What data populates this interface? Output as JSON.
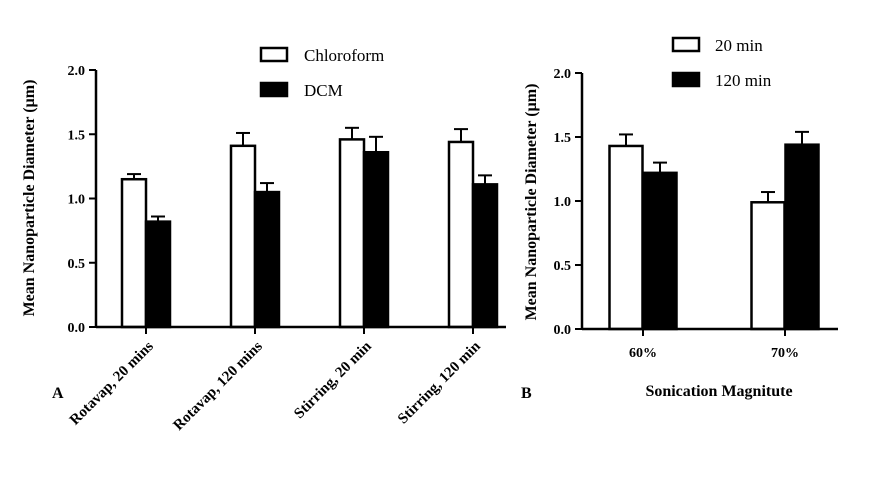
{
  "chart_data": [
    {
      "panel_label": "A",
      "type": "bar",
      "ylabel": "Mean Nanoparticle Diameter (µm)",
      "xlabel": "",
      "ylim": [
        0,
        2
      ],
      "yticks": [
        "0.0",
        "0.5",
        "1.0",
        "1.5",
        "2.0"
      ],
      "categories": [
        "Rotavap, 20 mins",
        "Rotavap, 120 mins",
        "Stirring, 20 min",
        "Stirring, 120 min"
      ],
      "series": [
        {
          "name": "Chloroform",
          "values": [
            1.15,
            1.41,
            1.46,
            1.44
          ],
          "errors": [
            0.04,
            0.1,
            0.09,
            0.1
          ],
          "color": "#ffffff"
        },
        {
          "name": "DCM",
          "values": [
            0.82,
            1.05,
            1.36,
            1.11
          ],
          "errors": [
            0.04,
            0.07,
            0.12,
            0.07
          ],
          "color": "#000000"
        }
      ],
      "legend_position": "top-center",
      "grid": false
    },
    {
      "panel_label": "B",
      "type": "bar",
      "ylabel": "Mean Nanoparticle Diameter (µm)",
      "xlabel": "Sonication Magnitute",
      "ylim": [
        0,
        2
      ],
      "yticks": [
        "0.0",
        "0.5",
        "1.0",
        "1.5",
        "2.0"
      ],
      "categories": [
        "60%",
        "70%"
      ],
      "series": [
        {
          "name": "20 min",
          "values": [
            1.43,
            0.99
          ],
          "errors": [
            0.09,
            0.08
          ],
          "color": "#ffffff"
        },
        {
          "name": "120 min",
          "values": [
            1.22,
            1.44
          ],
          "errors": [
            0.08,
            0.1
          ],
          "color": "#000000"
        }
      ],
      "legend_position": "top-left",
      "grid": false
    }
  ]
}
